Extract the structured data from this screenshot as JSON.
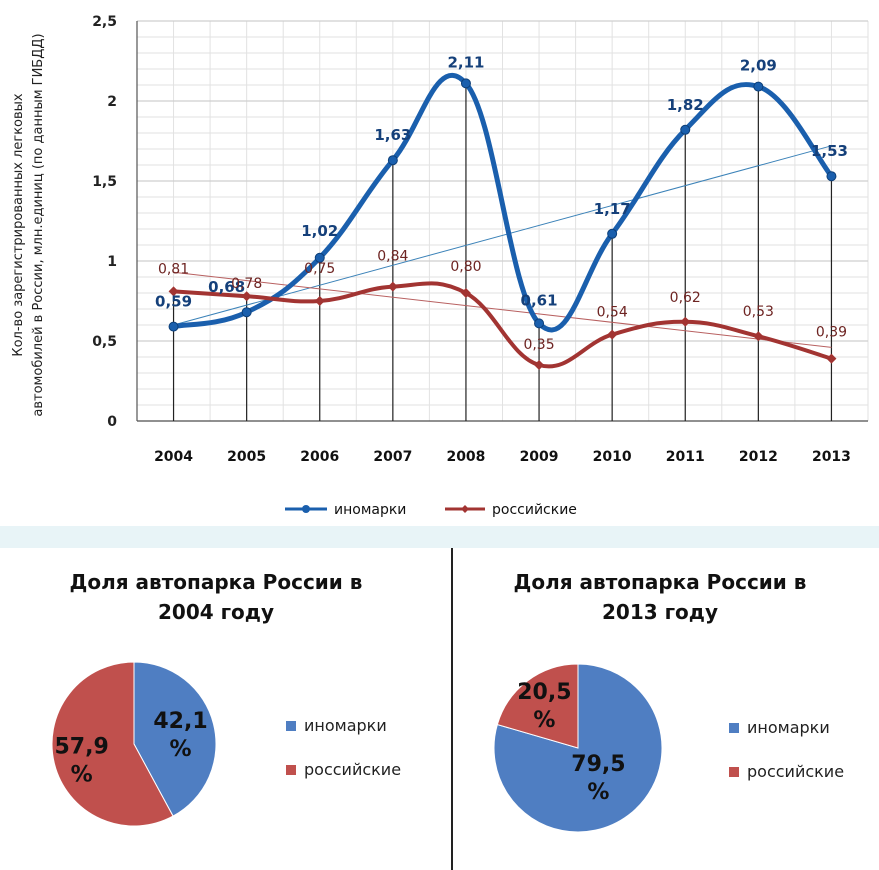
{
  "colors": {
    "inomarki": "#1a5fad",
    "rossiyskie": "#a23432",
    "inomarki_trend": "#3b82b8",
    "rossiyskie_trend": "#b86060",
    "pie_blue": "#4f7ec2",
    "pie_red": "#c0504d",
    "band": "#e8f4f7",
    "grid": "#cfcfcf"
  },
  "chart_data": [
    {
      "type": "line",
      "ylabel": "Кол-во зарегистрированных легковых автомобилей в России, млн.единиц (по данным ГИБДД)",
      "categories": [
        "2004",
        "2005",
        "2006",
        "2007",
        "2008",
        "2009",
        "2010",
        "2011",
        "2012",
        "2013"
      ],
      "ylim": [
        0,
        2.5
      ],
      "yticks": [
        {
          "value": 0,
          "label": "0"
        },
        {
          "value": 0.5,
          "label": "0,5"
        },
        {
          "value": 1,
          "label": "1"
        },
        {
          "value": 1.5,
          "label": "1,5"
        },
        {
          "value": 2,
          "label": "2"
        },
        {
          "value": 2.5,
          "label": "2,5"
        }
      ],
      "grid": true,
      "legend_position": "bottom",
      "series": [
        {
          "key": "inomarki",
          "name": "иномарки",
          "values": [
            0.59,
            0.68,
            1.02,
            1.63,
            2.11,
            0.61,
            1.17,
            1.82,
            2.09,
            1.53
          ],
          "labels": [
            "0,59",
            "0,68",
            "1,02",
            "1,63",
            "2,11",
            "0,61",
            "1,17",
            "1,82",
            "2,09",
            "1,53"
          ],
          "trend": [
            0.6,
            1.72
          ]
        },
        {
          "key": "rossiyskie",
          "name": "российские",
          "values": [
            0.81,
            0.78,
            0.75,
            0.84,
            0.8,
            0.35,
            0.54,
            0.62,
            0.53,
            0.39
          ],
          "labels": [
            "0,81",
            "0,78",
            "0,75",
            "0,84",
            "0,80",
            "0,35",
            "0,54",
            "0,62",
            "0,53",
            "0,39"
          ],
          "trend": [
            0.93,
            0.46
          ]
        }
      ]
    },
    {
      "type": "pie",
      "title": [
        "Доля автопарка России в",
        "2004 году"
      ],
      "slices": [
        {
          "name": "иномарки",
          "value": 42.1,
          "label": [
            "42,1",
            "%"
          ],
          "color": "#4f7ec2"
        },
        {
          "name": "российские",
          "value": 57.9,
          "label": [
            "57,9",
            "%"
          ],
          "color": "#c0504d"
        }
      ],
      "legend_position": "right"
    },
    {
      "type": "pie",
      "title": [
        "Доля автопарка России в",
        "2013 году"
      ],
      "slices": [
        {
          "name": "иномарки",
          "value": 79.5,
          "label": [
            "79,5",
            "%"
          ],
          "color": "#4f7ec2"
        },
        {
          "name": "российские",
          "value": 20.5,
          "label": [
            "20,5",
            "%"
          ],
          "color": "#c0504d"
        }
      ],
      "legend_position": "right"
    }
  ]
}
